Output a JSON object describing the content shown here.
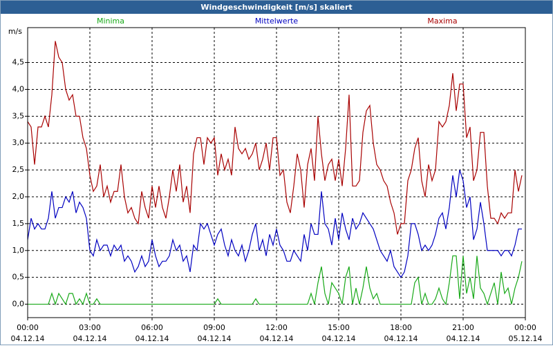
{
  "chart_data": {
    "type": "line",
    "title": "Windgeschwindigkeit [m/s] skaliert",
    "y_label": "m/s",
    "x": [
      0,
      10,
      20,
      30,
      40,
      50,
      60,
      70,
      80,
      90,
      100,
      110,
      120,
      130,
      140,
      150,
      160,
      170,
      180,
      190,
      200,
      210,
      220,
      230,
      240,
      250,
      260,
      270,
      280,
      290,
      300,
      310,
      320,
      330,
      340,
      350,
      360,
      370,
      380,
      390,
      400,
      410,
      420,
      430,
      440,
      450,
      460,
      470,
      480,
      490,
      500,
      510,
      520,
      530,
      540,
      550,
      560,
      570,
      580,
      590,
      600,
      610,
      620,
      630,
      640,
      650,
      660,
      670,
      680,
      690,
      700,
      710,
      720,
      730,
      740,
      750,
      760,
      770,
      780,
      790,
      800,
      810,
      820,
      830,
      840,
      850,
      860,
      870,
      880,
      890,
      900,
      910,
      920,
      930,
      940,
      950,
      960,
      970,
      980,
      990,
      1000,
      1010,
      1020,
      1030,
      1040,
      1050,
      1060,
      1070,
      1080,
      1090,
      1100,
      1110,
      1120,
      1130,
      1140,
      1150,
      1160,
      1170,
      1180,
      1190,
      1200,
      1210,
      1220,
      1230,
      1240,
      1250,
      1260,
      1270,
      1280,
      1290,
      1300,
      1310,
      1320,
      1330,
      1340,
      1350,
      1360,
      1370,
      1380,
      1390,
      1400,
      1410,
      1420,
      1430
    ],
    "series": [
      {
        "name": "Minima",
        "color": "#16a816",
        "values": [
          0,
          0,
          0,
          0,
          0,
          0,
          0,
          0.2,
          0,
          0.2,
          0.1,
          0,
          0.2,
          0.2,
          0,
          0.1,
          0,
          0.2,
          0,
          0,
          0.1,
          0,
          0,
          0,
          0,
          0,
          0,
          0,
          0,
          0,
          0,
          0,
          0,
          0,
          0,
          0,
          0,
          0,
          0,
          0,
          0,
          0,
          0,
          0,
          0,
          0,
          0,
          0,
          0,
          0,
          0,
          0,
          0,
          0,
          0,
          0.1,
          0,
          0,
          0,
          0,
          0,
          0,
          0,
          0,
          0,
          0,
          0.1,
          0,
          0,
          0,
          0,
          0,
          0,
          0,
          0,
          0,
          0,
          0,
          0,
          0,
          0,
          0,
          0.2,
          0,
          0.4,
          0.7,
          0.2,
          0,
          0.4,
          0.3,
          0.2,
          0,
          0.5,
          0.7,
          0,
          0.3,
          0,
          0.3,
          0.7,
          0.3,
          0.1,
          0.2,
          0,
          0,
          0,
          0,
          0,
          0,
          0,
          0,
          0,
          0,
          0.4,
          0.5,
          0,
          0.2,
          0,
          0,
          0.1,
          0.3,
          0.1,
          0,
          0.4,
          0.9,
          0.9,
          0.1,
          0.9,
          0.2,
          0.5,
          0.1,
          0.9,
          0.3,
          0.2,
          0,
          0.2,
          0.4,
          0,
          0.6,
          0.2,
          0.3,
          0,
          0.3,
          0.5,
          0.8
        ]
      },
      {
        "name": "Mittelwerte",
        "color": "#0000c0",
        "values": [
          1.2,
          1.6,
          1.4,
          1.5,
          1.4,
          1.4,
          1.6,
          2.1,
          1.6,
          1.8,
          1.8,
          2.0,
          1.9,
          2.1,
          1.7,
          1.9,
          1.8,
          1.6,
          1.0,
          0.9,
          1.2,
          1.0,
          1.1,
          1.1,
          0.9,
          1.1,
          1.0,
          1.1,
          0.8,
          0.9,
          0.8,
          0.6,
          0.7,
          0.9,
          0.7,
          0.8,
          1.2,
          0.9,
          0.7,
          0.8,
          0.8,
          0.9,
          1.2,
          1.0,
          1.1,
          0.8,
          0.9,
          0.6,
          1.1,
          1.0,
          1.5,
          1.4,
          1.5,
          1.3,
          1.1,
          1.3,
          1.4,
          1.1,
          0.9,
          1.2,
          1.0,
          0.9,
          1.1,
          0.8,
          1.0,
          1.3,
          1.5,
          1.0,
          1.2,
          0.9,
          1.3,
          1.1,
          1.4,
          1.1,
          1.0,
          0.8,
          0.8,
          1.0,
          0.9,
          0.8,
          1.3,
          1.0,
          1.5,
          1.3,
          1.3,
          2.1,
          1.5,
          1.4,
          1.1,
          1.6,
          1.2,
          1.7,
          1.4,
          1.2,
          1.6,
          1.4,
          1.5,
          1.7,
          1.6,
          1.5,
          1.4,
          1.2,
          1.0,
          0.9,
          0.8,
          1.0,
          0.7,
          0.6,
          0.5,
          0.6,
          0.9,
          1.5,
          1.5,
          1.3,
          1.0,
          1.1,
          1.0,
          1.1,
          1.3,
          1.6,
          1.7,
          1.4,
          1.8,
          2.4,
          2.0,
          2.5,
          2.3,
          1.8,
          2.0,
          1.2,
          1.4,
          1.9,
          1.5,
          1.0,
          1.0,
          1.0,
          1.0,
          0.9,
          1.0,
          1.0,
          0.9,
          1.1,
          1.4,
          1.4
        ]
      },
      {
        "name": "Maxima",
        "color": "#a80000",
        "values": [
          3.4,
          3.3,
          2.6,
          3.3,
          3.3,
          3.5,
          3.3,
          3.9,
          4.9,
          4.6,
          4.5,
          4.0,
          3.8,
          3.9,
          3.5,
          3.5,
          3.1,
          2.9,
          2.4,
          2.1,
          2.2,
          2.6,
          2.0,
          2.2,
          1.9,
          2.1,
          2.1,
          2.6,
          2.0,
          1.7,
          1.8,
          1.6,
          1.5,
          2.1,
          1.8,
          1.6,
          2.2,
          1.8,
          2.2,
          1.8,
          1.6,
          2.0,
          2.5,
          2.1,
          2.6,
          1.9,
          2.2,
          1.7,
          2.8,
          3.1,
          3.1,
          2.6,
          3.1,
          3.0,
          3.1,
          2.4,
          2.8,
          2.5,
          2.7,
          2.4,
          3.3,
          2.9,
          2.8,
          2.9,
          2.7,
          2.8,
          3.0,
          2.5,
          2.7,
          3.0,
          2.5,
          3.1,
          3.1,
          2.4,
          2.5,
          1.9,
          1.7,
          2.2,
          2.8,
          2.5,
          1.8,
          2.6,
          2.9,
          2.3,
          3.5,
          2.8,
          2.3,
          2.6,
          2.7,
          2.3,
          2.7,
          2.2,
          2.9,
          3.9,
          2.2,
          2.2,
          2.3,
          3.2,
          3.6,
          3.7,
          3.0,
          2.6,
          2.5,
          2.3,
          2.2,
          1.9,
          1.7,
          1.3,
          1.5,
          1.5,
          2.3,
          2.5,
          2.9,
          3.1,
          2.3,
          2.0,
          2.6,
          2.3,
          2.5,
          3.4,
          3.3,
          3.4,
          3.7,
          4.3,
          3.6,
          4.1,
          4.1,
          3.1,
          3.3,
          2.3,
          2.5,
          3.2,
          3.2,
          2.2,
          1.6,
          1.6,
          1.5,
          1.7,
          1.6,
          1.7,
          1.7,
          2.5,
          2.1,
          2.4
        ]
      }
    ],
    "xlim": [
      0,
      1440
    ],
    "xticks": [
      {
        "value": 0,
        "label": "00:00"
      },
      {
        "value": 180,
        "label": "03:00"
      },
      {
        "value": 360,
        "label": "06:00"
      },
      {
        "value": 540,
        "label": "09:00"
      },
      {
        "value": 720,
        "label": "12:00"
      },
      {
        "value": 900,
        "label": "15:00"
      },
      {
        "value": 1080,
        "label": "18:00"
      },
      {
        "value": 1260,
        "label": "21:00"
      },
      {
        "value": 1440,
        "label": "00:00"
      }
    ],
    "xtick_dates": [
      "04.12.14",
      "04.12.14",
      "04.12.14",
      "04.12.14",
      "04.12.14",
      "04.12.14",
      "04.12.14",
      "04.12.14",
      "05.12.14"
    ],
    "ylim": [
      -0.25,
      5.15
    ],
    "yticks": [
      {
        "value": 0,
        "label": "0,0"
      },
      {
        "value": 0.5,
        "label": "0,5"
      },
      {
        "value": 1,
        "label": "1,0"
      },
      {
        "value": 1.5,
        "label": "1,5"
      },
      {
        "value": 2,
        "label": "2,0"
      },
      {
        "value": 2.5,
        "label": "2,5"
      },
      {
        "value": 3,
        "label": "3,0"
      },
      {
        "value": 3.5,
        "label": "3,5"
      },
      {
        "value": 4,
        "label": "4,0"
      },
      {
        "value": 4.5,
        "label": "4,5"
      }
    ],
    "grid": true
  }
}
